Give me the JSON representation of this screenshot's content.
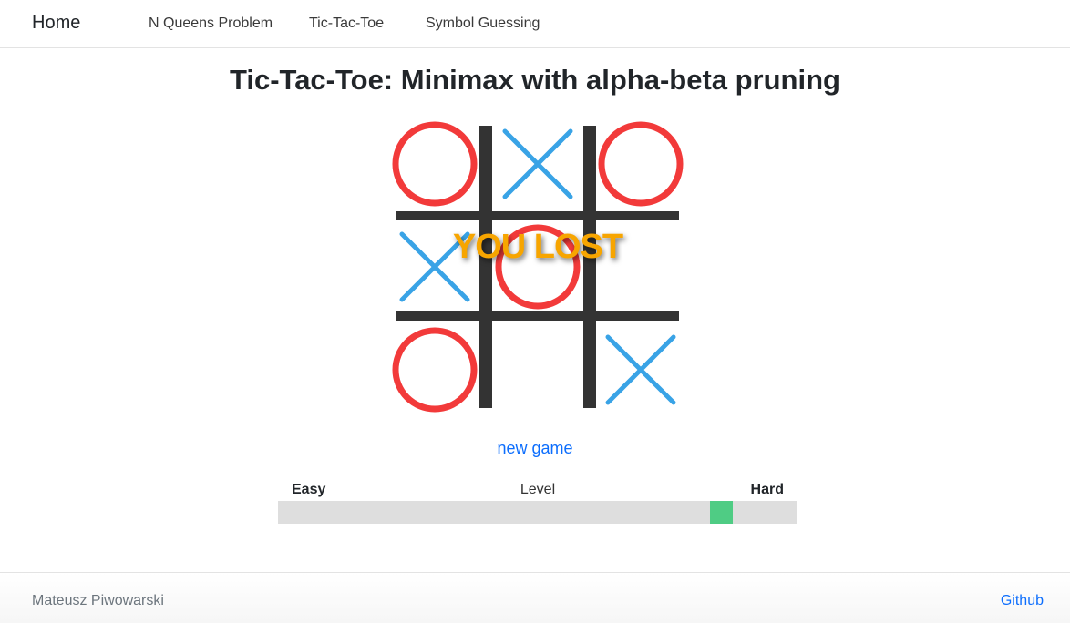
{
  "navbar": {
    "brand": "Home",
    "links": [
      "N Queens Problem",
      "Tic-Tac-Toe",
      "Symbol Guessing"
    ]
  },
  "title": "Tic-Tac-Toe: Minimax with alpha-beta pruning",
  "board": {
    "cells": [
      "O",
      "X",
      "O",
      "X",
      "O",
      "",
      "O",
      "",
      "X"
    ],
    "colors": {
      "O": "#f23a3a",
      "X": "#39a3e6",
      "grid": "#333333"
    }
  },
  "result_text": "YOU LOST",
  "new_game_label": "new game",
  "level": {
    "easy_label": "Easy",
    "label": "Level",
    "hard_label": "Hard",
    "value": 0.87
  },
  "footer": {
    "author": "Mateusz Piwowarski",
    "link": "Github"
  }
}
